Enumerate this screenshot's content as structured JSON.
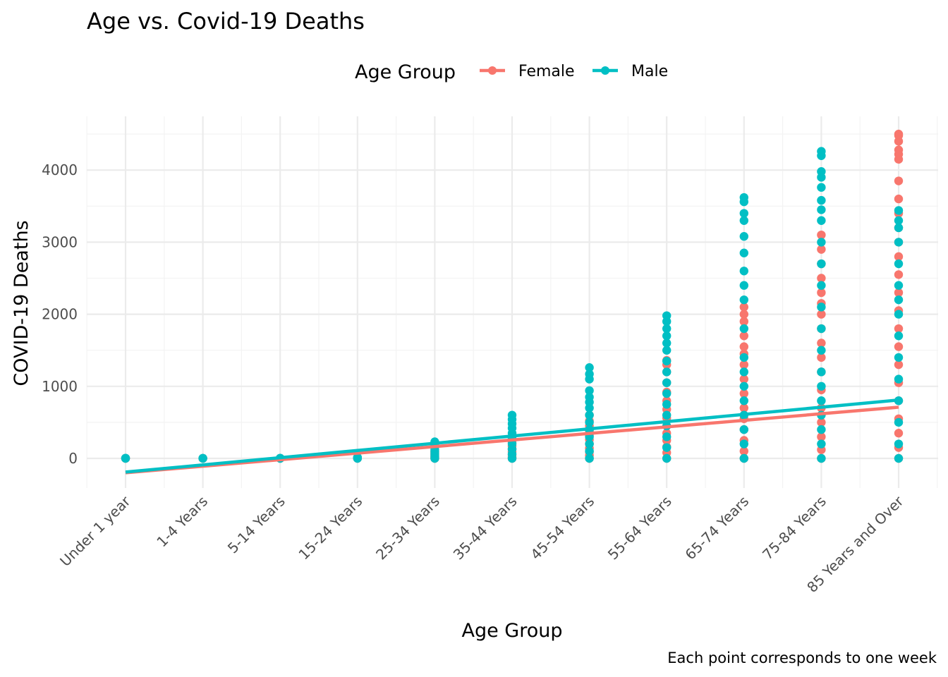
{
  "chart_data": {
    "type": "scatter",
    "title": "Age vs. Covid-19 Deaths",
    "xlabel": "Age Group",
    "ylabel": "COVID-19 Deaths",
    "caption": "Each point corresponds to one week",
    "categories": [
      "Under 1 year",
      "1-4 Years",
      "5-14 Years",
      "15-24 Years",
      "25-34 Years",
      "35-44 Years",
      "45-54 Years",
      "55-64 Years",
      "65-74 Years",
      "75-84 Years",
      "85 Years and Over"
    ],
    "ylim": [
      -450,
      4600
    ],
    "yticks": [
      0,
      1000,
      2000,
      3000,
      4000
    ],
    "grid": true,
    "legend": {
      "title": "Age Group",
      "position": "top"
    },
    "series": [
      {
        "name": "Female",
        "color": "#F8766D",
        "trend": [
          [
            1,
            -200
          ],
          [
            11,
            710
          ]
        ],
        "points": [
          [
            1,
            0
          ],
          [
            1,
            2
          ],
          [
            2,
            0
          ],
          [
            2,
            1
          ],
          [
            3,
            0
          ],
          [
            3,
            2
          ],
          [
            4,
            0
          ],
          [
            4,
            5
          ],
          [
            4,
            10
          ],
          [
            5,
            0
          ],
          [
            5,
            10
          ],
          [
            5,
            25
          ],
          [
            5,
            40
          ],
          [
            5,
            60
          ],
          [
            5,
            80
          ],
          [
            5,
            100
          ],
          [
            6,
            0
          ],
          [
            6,
            20
          ],
          [
            6,
            50
          ],
          [
            6,
            90
          ],
          [
            6,
            130
          ],
          [
            6,
            170
          ],
          [
            6,
            220
          ],
          [
            6,
            260
          ],
          [
            7,
            0
          ],
          [
            7,
            40
          ],
          [
            7,
            90
          ],
          [
            7,
            140
          ],
          [
            7,
            200
          ],
          [
            7,
            260
          ],
          [
            7,
            320
          ],
          [
            7,
            380
          ],
          [
            7,
            450
          ],
          [
            7,
            520
          ],
          [
            7,
            600
          ],
          [
            8,
            0
          ],
          [
            8,
            80
          ],
          [
            8,
            160
          ],
          [
            8,
            250
          ],
          [
            8,
            350
          ],
          [
            8,
            450
          ],
          [
            8,
            560
          ],
          [
            8,
            680
          ],
          [
            8,
            800
          ],
          [
            8,
            920
          ],
          [
            8,
            1050
          ],
          [
            8,
            1200
          ],
          [
            8,
            1300
          ],
          [
            8,
            1360
          ],
          [
            9,
            0
          ],
          [
            9,
            100
          ],
          [
            9,
            250
          ],
          [
            9,
            400
          ],
          [
            9,
            550
          ],
          [
            9,
            700
          ],
          [
            9,
            900
          ],
          [
            9,
            1100
          ],
          [
            9,
            1300
          ],
          [
            9,
            1450
          ],
          [
            9,
            1550
          ],
          [
            9,
            1700
          ],
          [
            9,
            1900
          ],
          [
            9,
            2000
          ],
          [
            9,
            2100
          ],
          [
            10,
            0
          ],
          [
            10,
            120
          ],
          [
            10,
            300
          ],
          [
            10,
            500
          ],
          [
            10,
            700
          ],
          [
            10,
            950
          ],
          [
            10,
            1200
          ],
          [
            10,
            1400
          ],
          [
            10,
            1600
          ],
          [
            10,
            1800
          ],
          [
            10,
            2000
          ],
          [
            10,
            2150
          ],
          [
            10,
            2300
          ],
          [
            10,
            2500
          ],
          [
            10,
            2700
          ],
          [
            10,
            2900
          ],
          [
            10,
            3100
          ],
          [
            11,
            0
          ],
          [
            11,
            150
          ],
          [
            11,
            350
          ],
          [
            11,
            550
          ],
          [
            11,
            800
          ],
          [
            11,
            1050
          ],
          [
            11,
            1300
          ],
          [
            11,
            1550
          ],
          [
            11,
            1800
          ],
          [
            11,
            2050
          ],
          [
            11,
            2300
          ],
          [
            11,
            2550
          ],
          [
            11,
            2800
          ],
          [
            11,
            3000
          ],
          [
            11,
            3200
          ],
          [
            11,
            3400
          ],
          [
            11,
            3600
          ],
          [
            11,
            3850
          ],
          [
            11,
            4150
          ],
          [
            11,
            4220
          ],
          [
            11,
            4280
          ],
          [
            11,
            4400
          ],
          [
            11,
            4480
          ],
          [
            11,
            4500
          ]
        ]
      },
      {
        "name": "Male",
        "color": "#00BFC4",
        "trend": [
          [
            1,
            -190
          ],
          [
            11,
            810
          ]
        ],
        "points": [
          [
            1,
            0
          ],
          [
            1,
            3
          ],
          [
            2,
            0
          ],
          [
            2,
            2
          ],
          [
            3,
            0
          ],
          [
            3,
            3
          ],
          [
            4,
            0
          ],
          [
            4,
            8
          ],
          [
            4,
            15
          ],
          [
            5,
            0
          ],
          [
            5,
            30
          ],
          [
            5,
            60
          ],
          [
            5,
            90
          ],
          [
            5,
            120
          ],
          [
            5,
            160
          ],
          [
            5,
            200
          ],
          [
            5,
            230
          ],
          [
            6,
            0
          ],
          [
            6,
            60
          ],
          [
            6,
            130
          ],
          [
            6,
            200
          ],
          [
            6,
            280
          ],
          [
            6,
            350
          ],
          [
            6,
            420
          ],
          [
            6,
            480
          ],
          [
            6,
            540
          ],
          [
            6,
            600
          ],
          [
            7,
            0
          ],
          [
            7,
            100
          ],
          [
            7,
            200
          ],
          [
            7,
            300
          ],
          [
            7,
            400
          ],
          [
            7,
            500
          ],
          [
            7,
            600
          ],
          [
            7,
            700
          ],
          [
            7,
            780
          ],
          [
            7,
            850
          ],
          [
            7,
            940
          ],
          [
            7,
            1100
          ],
          [
            7,
            1170
          ],
          [
            7,
            1260
          ],
          [
            8,
            0
          ],
          [
            8,
            150
          ],
          [
            8,
            300
          ],
          [
            8,
            450
          ],
          [
            8,
            600
          ],
          [
            8,
            750
          ],
          [
            8,
            900
          ],
          [
            8,
            1050
          ],
          [
            8,
            1200
          ],
          [
            8,
            1350
          ],
          [
            8,
            1500
          ],
          [
            8,
            1600
          ],
          [
            8,
            1700
          ],
          [
            8,
            1800
          ],
          [
            8,
            1900
          ],
          [
            8,
            1980
          ],
          [
            9,
            0
          ],
          [
            9,
            200
          ],
          [
            9,
            400
          ],
          [
            9,
            600
          ],
          [
            9,
            800
          ],
          [
            9,
            1000
          ],
          [
            9,
            1200
          ],
          [
            9,
            1400
          ],
          [
            9,
            1800
          ],
          [
            9,
            2200
          ],
          [
            9,
            2400
          ],
          [
            9,
            2600
          ],
          [
            9,
            2850
          ],
          [
            9,
            3080
          ],
          [
            9,
            3300
          ],
          [
            9,
            3400
          ],
          [
            9,
            3560
          ],
          [
            9,
            3620
          ],
          [
            10,
            0
          ],
          [
            10,
            200
          ],
          [
            10,
            400
          ],
          [
            10,
            600
          ],
          [
            10,
            800
          ],
          [
            10,
            1000
          ],
          [
            10,
            1200
          ],
          [
            10,
            1500
          ],
          [
            10,
            1800
          ],
          [
            10,
            2100
          ],
          [
            10,
            2400
          ],
          [
            10,
            2700
          ],
          [
            10,
            3000
          ],
          [
            10,
            3300
          ],
          [
            10,
            3450
          ],
          [
            10,
            3580
          ],
          [
            10,
            3760
          ],
          [
            10,
            3900
          ],
          [
            10,
            3980
          ],
          [
            10,
            4200
          ],
          [
            10,
            4260
          ],
          [
            11,
            0
          ],
          [
            11,
            200
          ],
          [
            11,
            500
          ],
          [
            11,
            800
          ],
          [
            11,
            1100
          ],
          [
            11,
            1400
          ],
          [
            11,
            1700
          ],
          [
            11,
            2000
          ],
          [
            11,
            2200
          ],
          [
            11,
            2400
          ],
          [
            11,
            2700
          ],
          [
            11,
            3000
          ],
          [
            11,
            3200
          ],
          [
            11,
            3300
          ],
          [
            11,
            3440
          ]
        ]
      }
    ]
  }
}
